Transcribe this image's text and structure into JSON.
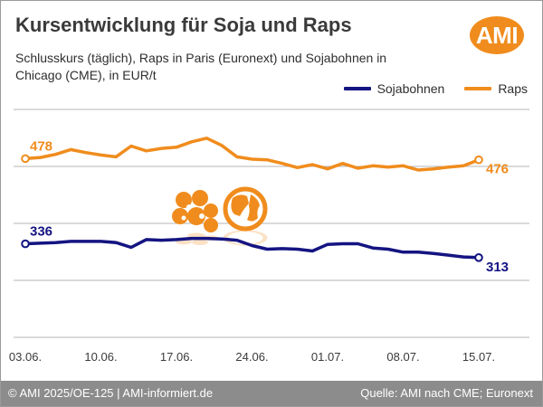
{
  "title": "Kursentwicklung für Soja und Raps",
  "subtitle": "Schlusskurs (täglich), Raps in Paris (Euronext) und Sojabohnen in Chicago (CME), in EUR/t",
  "logo_text": "AMI",
  "footer": {
    "left": "© AMI 2025/OE-125 | AMI-informiert.de",
    "right": "Quelle: AMI nach CME; Euronext"
  },
  "colors": {
    "raps": "#f08c1d",
    "soja": "#141482",
    "grid": "#b4b4b4",
    "text": "#3a3a3a"
  },
  "icons": [
    "flower-icon",
    "globe-icon"
  ],
  "chart_data": {
    "type": "line",
    "x": [
      "03.06.",
      "04.06.",
      "05.06.",
      "06.06.",
      "09.06.",
      "10.06.",
      "11.06.",
      "12.06.",
      "13.06.",
      "16.06.",
      "17.06.",
      "18.06.",
      "19.06.",
      "20.06.",
      "23.06.",
      "24.06.",
      "25.06.",
      "26.06.",
      "27.06.",
      "30.06.",
      "01.07.",
      "02.07.",
      "03.07.",
      "04.07.",
      "07.07.",
      "08.07.",
      "09.07.",
      "10.07.",
      "11.07.",
      "14.07.",
      "15.07."
    ],
    "tick_labels": [
      "03.06.",
      "10.06.",
      "17.06.",
      "24.06.",
      "01.07.",
      "08.07.",
      "15.07."
    ],
    "tick_indices": [
      0,
      5,
      10,
      15,
      20,
      25,
      30
    ],
    "ylim": [
      180,
      560
    ],
    "grid": true,
    "legend_position": "top-right",
    "series": [
      {
        "name": "Sojabohnen",
        "color": "#141482",
        "values": [
          336,
          337,
          338,
          340,
          340,
          340,
          338,
          330,
          343,
          342,
          343,
          345,
          345,
          344,
          342,
          333,
          327,
          328,
          327,
          324,
          335,
          336,
          336,
          329,
          327,
          322,
          322,
          320,
          317,
          314,
          313
        ],
        "start_label": "336",
        "end_label": "313"
      },
      {
        "name": "Raps",
        "color": "#f08c1d",
        "values": [
          478,
          480,
          485,
          493,
          488,
          484,
          481,
          499,
          491,
          495,
          497,
          506,
          512,
          500,
          481,
          477,
          476,
          470,
          463,
          468,
          461,
          470,
          462,
          466,
          464,
          466,
          459,
          461,
          464,
          466,
          476
        ],
        "start_label": "478",
        "end_label": "476"
      }
    ]
  }
}
